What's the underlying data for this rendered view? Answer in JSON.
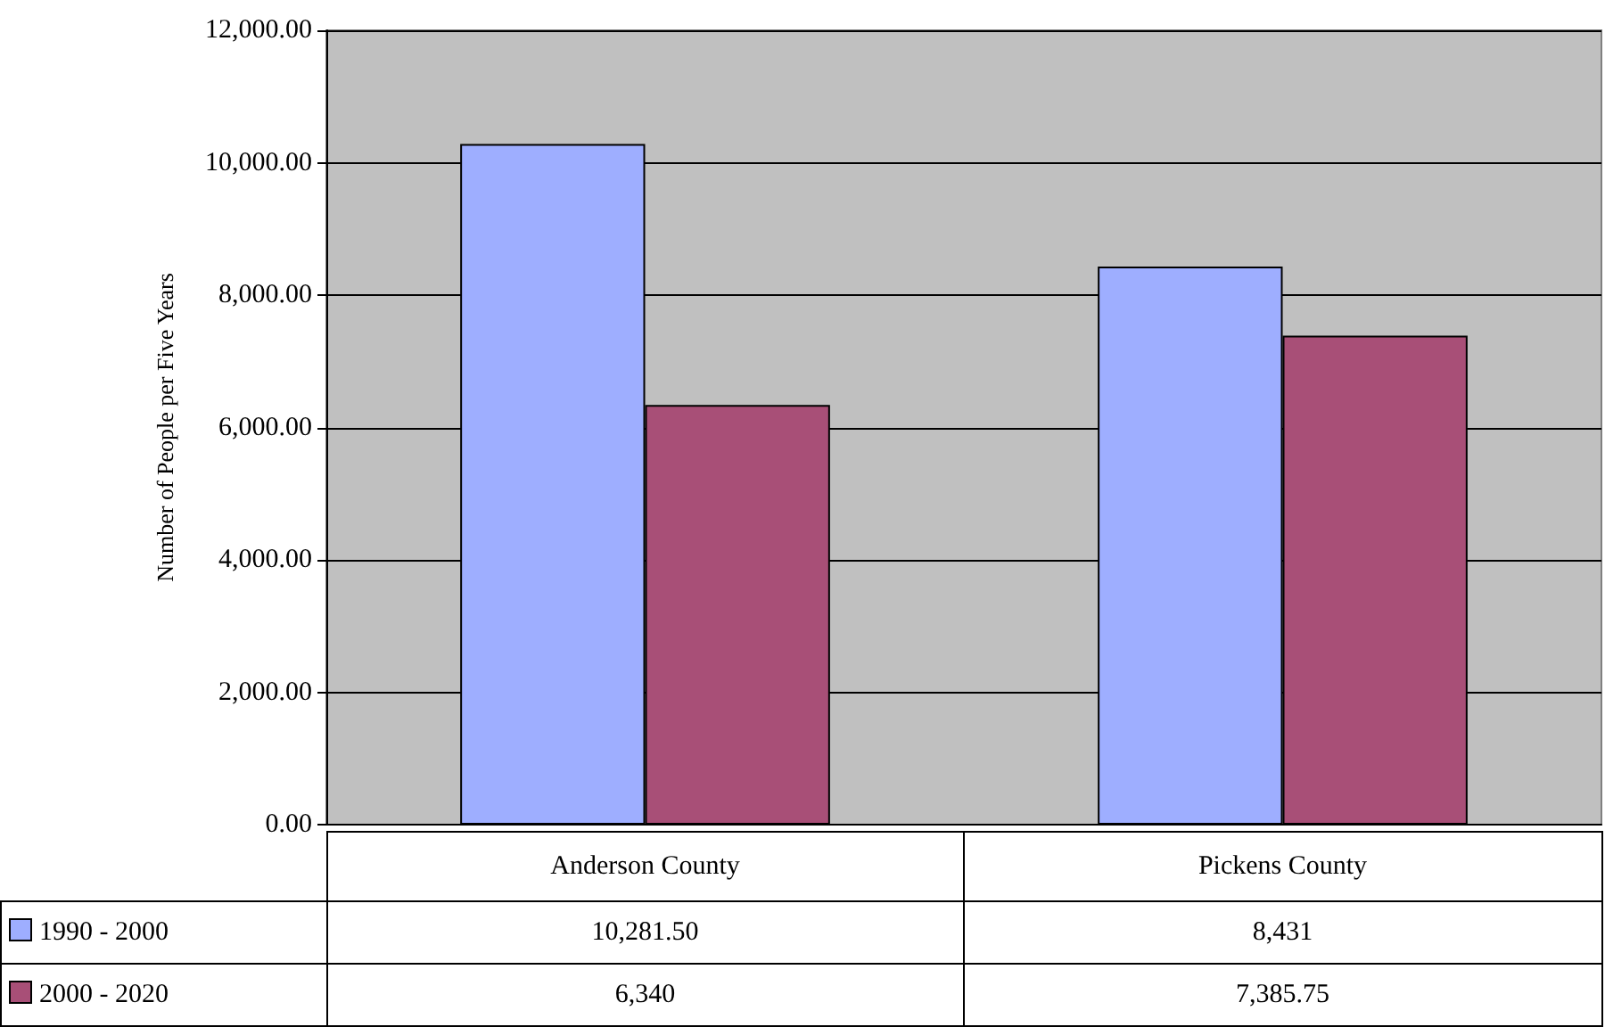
{
  "chart_data": {
    "type": "bar",
    "ylabel": "Number of People per Five Years",
    "categories": [
      "Anderson County",
      "Pickens County"
    ],
    "series": [
      {
        "name": "1990 - 2000",
        "color": "#9eaeff",
        "values": [
          10281.5,
          8431
        ],
        "value_labels": [
          "10,281.50",
          "8,431"
        ]
      },
      {
        "name": "2000 - 2020",
        "color": "#a84f77",
        "values": [
          6340,
          7385.75
        ],
        "value_labels": [
          "6,340",
          "7,385.75"
        ]
      }
    ],
    "ylim": [
      0,
      12000
    ],
    "yticks": [
      {
        "value": 0,
        "label": "0.00"
      },
      {
        "value": 2000,
        "label": "2,000.00"
      },
      {
        "value": 4000,
        "label": "4,000.00"
      },
      {
        "value": 6000,
        "label": "6,000.00"
      },
      {
        "value": 8000,
        "label": "8,000.00"
      },
      {
        "value": 10000,
        "label": "10,000.00"
      },
      {
        "value": 12000,
        "label": "12,000.00"
      }
    ],
    "grid": "y",
    "legend": "bottom left"
  }
}
